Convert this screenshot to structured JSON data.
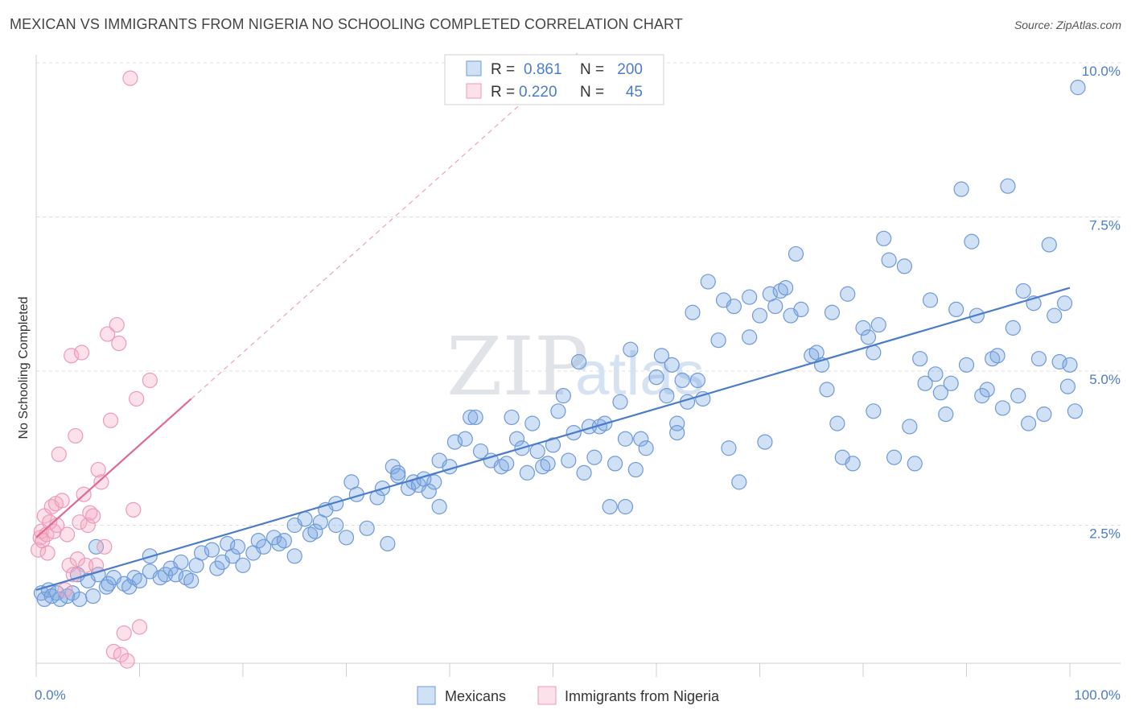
{
  "header": {
    "title": "MEXICAN VS IMMIGRANTS FROM NIGERIA NO SCHOOLING COMPLETED CORRELATION CHART",
    "source": "Source: ZipAtlas.com"
  },
  "watermark": {
    "zip": "ZIP",
    "atlas": "atlas"
  },
  "colors": {
    "blue": "#4a7cc9",
    "blue_fill": "rgba(120,165,225,0.35)",
    "blue_stroke": "#6f9ad8",
    "pink": "#e06a92",
    "pink_fill": "rgba(245,170,195,0.35)",
    "pink_stroke": "#ec9bb6",
    "grid": "#dcdcdc"
  },
  "legend": {
    "rows": [
      {
        "r_label": "R =",
        "r_value": "0.861",
        "n_label": "N =",
        "n_value": "200"
      },
      {
        "r_label": "R =",
        "r_value": "0.220",
        "n_label": "N =",
        "n_value": "45"
      }
    ]
  },
  "bottom_legend": {
    "items": [
      "Mexicans",
      "Immigrants from Nigeria"
    ]
  },
  "chart_data": {
    "type": "scatter",
    "title": "MEXICAN VS IMMIGRANTS FROM NIGERIA NO SCHOOLING COMPLETED CORRELATION CHART",
    "xlabel": "",
    "ylabel": "No Schooling Completed",
    "xlim": [
      0,
      100
    ],
    "ylim": [
      0,
      10.5
    ],
    "x_tick_labels": [
      "0.0%",
      "100.0%"
    ],
    "y_ticks": [
      2.5,
      5.0,
      7.5,
      10.0
    ],
    "y_tick_labels": [
      "2.5%",
      "5.0%",
      "7.5%",
      "10.0%"
    ],
    "grid": true,
    "legend_position": "top-center",
    "series": [
      {
        "name": "Mexicans",
        "R": 0.861,
        "N": 200,
        "trend": {
          "x": [
            0,
            100
          ],
          "y": [
            1.45,
            6.35
          ],
          "style": "solid"
        },
        "points": [
          [
            0.5,
            1.4
          ],
          [
            0.8,
            1.3
          ],
          [
            1.2,
            1.45
          ],
          [
            1.5,
            1.35
          ],
          [
            2.0,
            1.4
          ],
          [
            2.3,
            1.3
          ],
          [
            3.0,
            1.35
          ],
          [
            3.5,
            1.4
          ],
          [
            4.2,
            1.3
          ],
          [
            5.5,
            1.35
          ],
          [
            4.0,
            1.7
          ],
          [
            5.0,
            1.6
          ],
          [
            5.8,
            2.15
          ],
          [
            6.0,
            1.7
          ],
          [
            6.8,
            1.5
          ],
          [
            7.0,
            1.55
          ],
          [
            7.5,
            1.65
          ],
          [
            8.5,
            1.55
          ],
          [
            9.0,
            1.5
          ],
          [
            9.5,
            1.65
          ],
          [
            10.0,
            1.6
          ],
          [
            11.0,
            1.75
          ],
          [
            11.0,
            2.0
          ],
          [
            12.0,
            1.65
          ],
          [
            12.5,
            1.7
          ],
          [
            13.0,
            1.8
          ],
          [
            13.5,
            1.7
          ],
          [
            14.0,
            1.9
          ],
          [
            14.5,
            1.65
          ],
          [
            15.0,
            1.6
          ],
          [
            15.5,
            1.85
          ],
          [
            16.0,
            2.05
          ],
          [
            17.0,
            2.1
          ],
          [
            17.5,
            1.8
          ],
          [
            18.0,
            1.9
          ],
          [
            18.5,
            2.2
          ],
          [
            19.0,
            2.0
          ],
          [
            19.5,
            2.15
          ],
          [
            20.0,
            1.85
          ],
          [
            21.0,
            2.05
          ],
          [
            21.5,
            2.25
          ],
          [
            22.0,
            2.15
          ],
          [
            23.0,
            2.3
          ],
          [
            23.5,
            2.2
          ],
          [
            24.0,
            2.25
          ],
          [
            25.0,
            2.0
          ],
          [
            25.0,
            2.5
          ],
          [
            26.0,
            2.6
          ],
          [
            26.5,
            2.35
          ],
          [
            27.0,
            2.4
          ],
          [
            27.5,
            2.55
          ],
          [
            28.0,
            2.75
          ],
          [
            29.0,
            2.85
          ],
          [
            29.0,
            2.5
          ],
          [
            30.0,
            2.3
          ],
          [
            30.5,
            3.2
          ],
          [
            31.0,
            3.0
          ],
          [
            32.0,
            2.45
          ],
          [
            33.0,
            2.95
          ],
          [
            33.5,
            3.1
          ],
          [
            34.0,
            2.2
          ],
          [
            34.5,
            3.45
          ],
          [
            35.0,
            3.35
          ],
          [
            36.0,
            3.1
          ],
          [
            36.5,
            3.2
          ],
          [
            37.0,
            3.15
          ],
          [
            37.5,
            3.25
          ],
          [
            38.0,
            3.05
          ],
          [
            38.5,
            3.2
          ],
          [
            39.0,
            3.55
          ],
          [
            39.0,
            2.8
          ],
          [
            40.0,
            3.45
          ],
          [
            40.5,
            3.85
          ],
          [
            41.5,
            3.9
          ],
          [
            42.0,
            4.25
          ],
          [
            42.5,
            4.25
          ],
          [
            43.0,
            3.7
          ],
          [
            44.0,
            3.55
          ],
          [
            45.0,
            3.45
          ],
          [
            45.5,
            3.5
          ],
          [
            46.0,
            4.25
          ],
          [
            46.5,
            3.9
          ],
          [
            47.0,
            3.75
          ],
          [
            47.5,
            3.35
          ],
          [
            48.0,
            4.15
          ],
          [
            48.5,
            3.7
          ],
          [
            49.0,
            3.45
          ],
          [
            49.5,
            3.5
          ],
          [
            50.0,
            3.8
          ],
          [
            50.5,
            4.35
          ],
          [
            51.0,
            4.6
          ],
          [
            51.5,
            3.55
          ],
          [
            52.0,
            4.0
          ],
          [
            52.5,
            5.15
          ],
          [
            53.0,
            3.35
          ],
          [
            53.5,
            4.1
          ],
          [
            54.0,
            3.6
          ],
          [
            54.5,
            4.1
          ],
          [
            55.0,
            4.15
          ],
          [
            55.5,
            2.8
          ],
          [
            56.0,
            3.5
          ],
          [
            56.5,
            4.5
          ],
          [
            57.0,
            3.9
          ],
          [
            57.5,
            5.35
          ],
          [
            57.0,
            2.8
          ],
          [
            58.0,
            3.4
          ],
          [
            58.5,
            3.9
          ],
          [
            59.0,
            3.75
          ],
          [
            60.0,
            4.9
          ],
          [
            60.5,
            5.25
          ],
          [
            61.0,
            4.6
          ],
          [
            61.5,
            5.1
          ],
          [
            62.0,
            4.15
          ],
          [
            62.5,
            4.85
          ],
          [
            63.0,
            4.5
          ],
          [
            63.5,
            5.95
          ],
          [
            64.0,
            4.85
          ],
          [
            64.5,
            4.55
          ],
          [
            65.0,
            6.45
          ],
          [
            66.0,
            5.5
          ],
          [
            66.5,
            6.15
          ],
          [
            67.0,
            3.75
          ],
          [
            67.5,
            6.05
          ],
          [
            68.0,
            3.2
          ],
          [
            69.0,
            5.55
          ],
          [
            69.0,
            6.2
          ],
          [
            70.0,
            5.9
          ],
          [
            70.5,
            3.85
          ],
          [
            71.0,
            6.25
          ],
          [
            71.5,
            6.05
          ],
          [
            72.0,
            6.3
          ],
          [
            72.5,
            6.35
          ],
          [
            73.0,
            5.9
          ],
          [
            73.5,
            6.9
          ],
          [
            74.0,
            6.0
          ],
          [
            75.0,
            5.25
          ],
          [
            75.5,
            5.3
          ],
          [
            76.0,
            5.1
          ],
          [
            76.5,
            4.7
          ],
          [
            77.0,
            5.95
          ],
          [
            77.5,
            4.15
          ],
          [
            78.0,
            3.6
          ],
          [
            78.5,
            6.25
          ],
          [
            79.0,
            3.5
          ],
          [
            80.0,
            5.7
          ],
          [
            80.5,
            5.55
          ],
          [
            81.0,
            5.3
          ],
          [
            81.5,
            5.75
          ],
          [
            81.0,
            4.35
          ],
          [
            82.0,
            7.15
          ],
          [
            82.5,
            6.8
          ],
          [
            83.0,
            3.6
          ],
          [
            84.0,
            6.7
          ],
          [
            84.5,
            4.1
          ],
          [
            85.0,
            3.5
          ],
          [
            85.5,
            5.2
          ],
          [
            86.0,
            4.8
          ],
          [
            86.5,
            6.15
          ],
          [
            87.0,
            4.95
          ],
          [
            87.5,
            4.65
          ],
          [
            88.0,
            4.3
          ],
          [
            88.5,
            4.8
          ],
          [
            89.0,
            6.0
          ],
          [
            89.5,
            7.95
          ],
          [
            90.0,
            5.1
          ],
          [
            90.5,
            7.1
          ],
          [
            91.0,
            5.9
          ],
          [
            91.5,
            4.6
          ],
          [
            92.0,
            4.7
          ],
          [
            92.5,
            5.2
          ],
          [
            93.0,
            5.25
          ],
          [
            93.5,
            4.4
          ],
          [
            94.0,
            8.0
          ],
          [
            94.5,
            5.7
          ],
          [
            95.0,
            4.6
          ],
          [
            95.5,
            6.3
          ],
          [
            96.0,
            4.15
          ],
          [
            96.5,
            6.1
          ],
          [
            97.0,
            5.2
          ],
          [
            97.5,
            4.3
          ],
          [
            98.0,
            7.05
          ],
          [
            98.5,
            5.9
          ],
          [
            99.0,
            5.15
          ],
          [
            99.5,
            6.1
          ],
          [
            99.8,
            4.75
          ],
          [
            100.0,
            5.1
          ],
          [
            100.5,
            4.35
          ],
          [
            101.0,
            9.6
          ],
          [
            62.0,
            4.0
          ],
          [
            35.0,
            3.3
          ]
        ]
      },
      {
        "name": "Immigrants from Nigeria",
        "R": 0.22,
        "N": 45,
        "trend": {
          "x": [
            0,
            15
          ],
          "y": [
            2.3,
            4.55
          ],
          "style": "solid",
          "extended_x": [
            15,
            100
          ],
          "extended_y": [
            4.55,
            17.3
          ],
          "extended_style": "dashed"
        },
        "points": [
          [
            0.2,
            2.1
          ],
          [
            0.4,
            2.3
          ],
          [
            0.5,
            2.4
          ],
          [
            0.6,
            2.25
          ],
          [
            0.8,
            2.65
          ],
          [
            1.0,
            2.35
          ],
          [
            1.1,
            2.05
          ],
          [
            1.3,
            2.55
          ],
          [
            1.5,
            2.8
          ],
          [
            1.7,
            2.4
          ],
          [
            1.9,
            2.85
          ],
          [
            2.0,
            2.5
          ],
          [
            2.2,
            3.65
          ],
          [
            2.5,
            2.9
          ],
          [
            2.8,
            1.45
          ],
          [
            3.0,
            2.35
          ],
          [
            3.2,
            1.85
          ],
          [
            3.4,
            5.25
          ],
          [
            3.6,
            1.7
          ],
          [
            3.8,
            3.95
          ],
          [
            4.0,
            1.95
          ],
          [
            4.2,
            2.55
          ],
          [
            4.4,
            5.3
          ],
          [
            4.6,
            3.0
          ],
          [
            4.8,
            1.85
          ],
          [
            5.0,
            2.5
          ],
          [
            5.2,
            2.7
          ],
          [
            5.5,
            2.65
          ],
          [
            5.8,
            1.85
          ],
          [
            6.0,
            3.4
          ],
          [
            6.3,
            3.2
          ],
          [
            6.6,
            2.15
          ],
          [
            6.9,
            5.6
          ],
          [
            7.2,
            4.2
          ],
          [
            7.5,
            0.45
          ],
          [
            7.8,
            5.75
          ],
          [
            8.0,
            5.45
          ],
          [
            8.2,
            0.4
          ],
          [
            8.5,
            0.75
          ],
          [
            8.8,
            0.3
          ],
          [
            9.1,
            9.75
          ],
          [
            9.4,
            2.75
          ],
          [
            9.7,
            4.55
          ],
          [
            10.0,
            0.85
          ],
          [
            11.0,
            4.85
          ]
        ]
      }
    ]
  }
}
